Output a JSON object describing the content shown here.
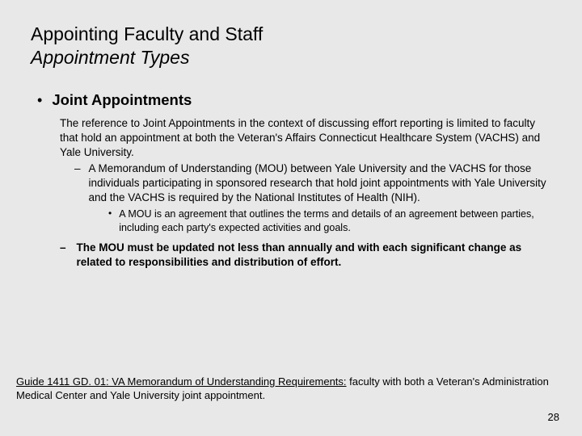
{
  "title": {
    "line1": "Appointing Faculty and Staff",
    "line2": "Appointment Types"
  },
  "main": {
    "heading": "Joint Appointments",
    "intro": "The reference to Joint Appointments in the context of discussing effort reporting is limited to faculty that hold an appointment at both the Veteran's Affairs Connecticut Healthcare System (VACHS) and Yale University.",
    "sub1": "A Memorandum of Understanding (MOU) between Yale University and the VACHS for those individuals participating in sponsored research that hold joint appointments with Yale University and the VACHS is required by the National Institutes of Health (NIH).",
    "sub1a": "A MOU is an agreement that outlines the terms and details of an agreement between parties, including each party's expected activities and goals.",
    "sub2": "The MOU must be updated not less than annually and with each significant change as related to responsibilities and distribution of effort."
  },
  "footer": {
    "link": "Guide 1411 GD. 01: VA Memorandum of Understanding Requirements:",
    "rest": " faculty with both a Veteran's Administration Medical Center and Yale University joint appointment."
  },
  "pageNumber": "28"
}
